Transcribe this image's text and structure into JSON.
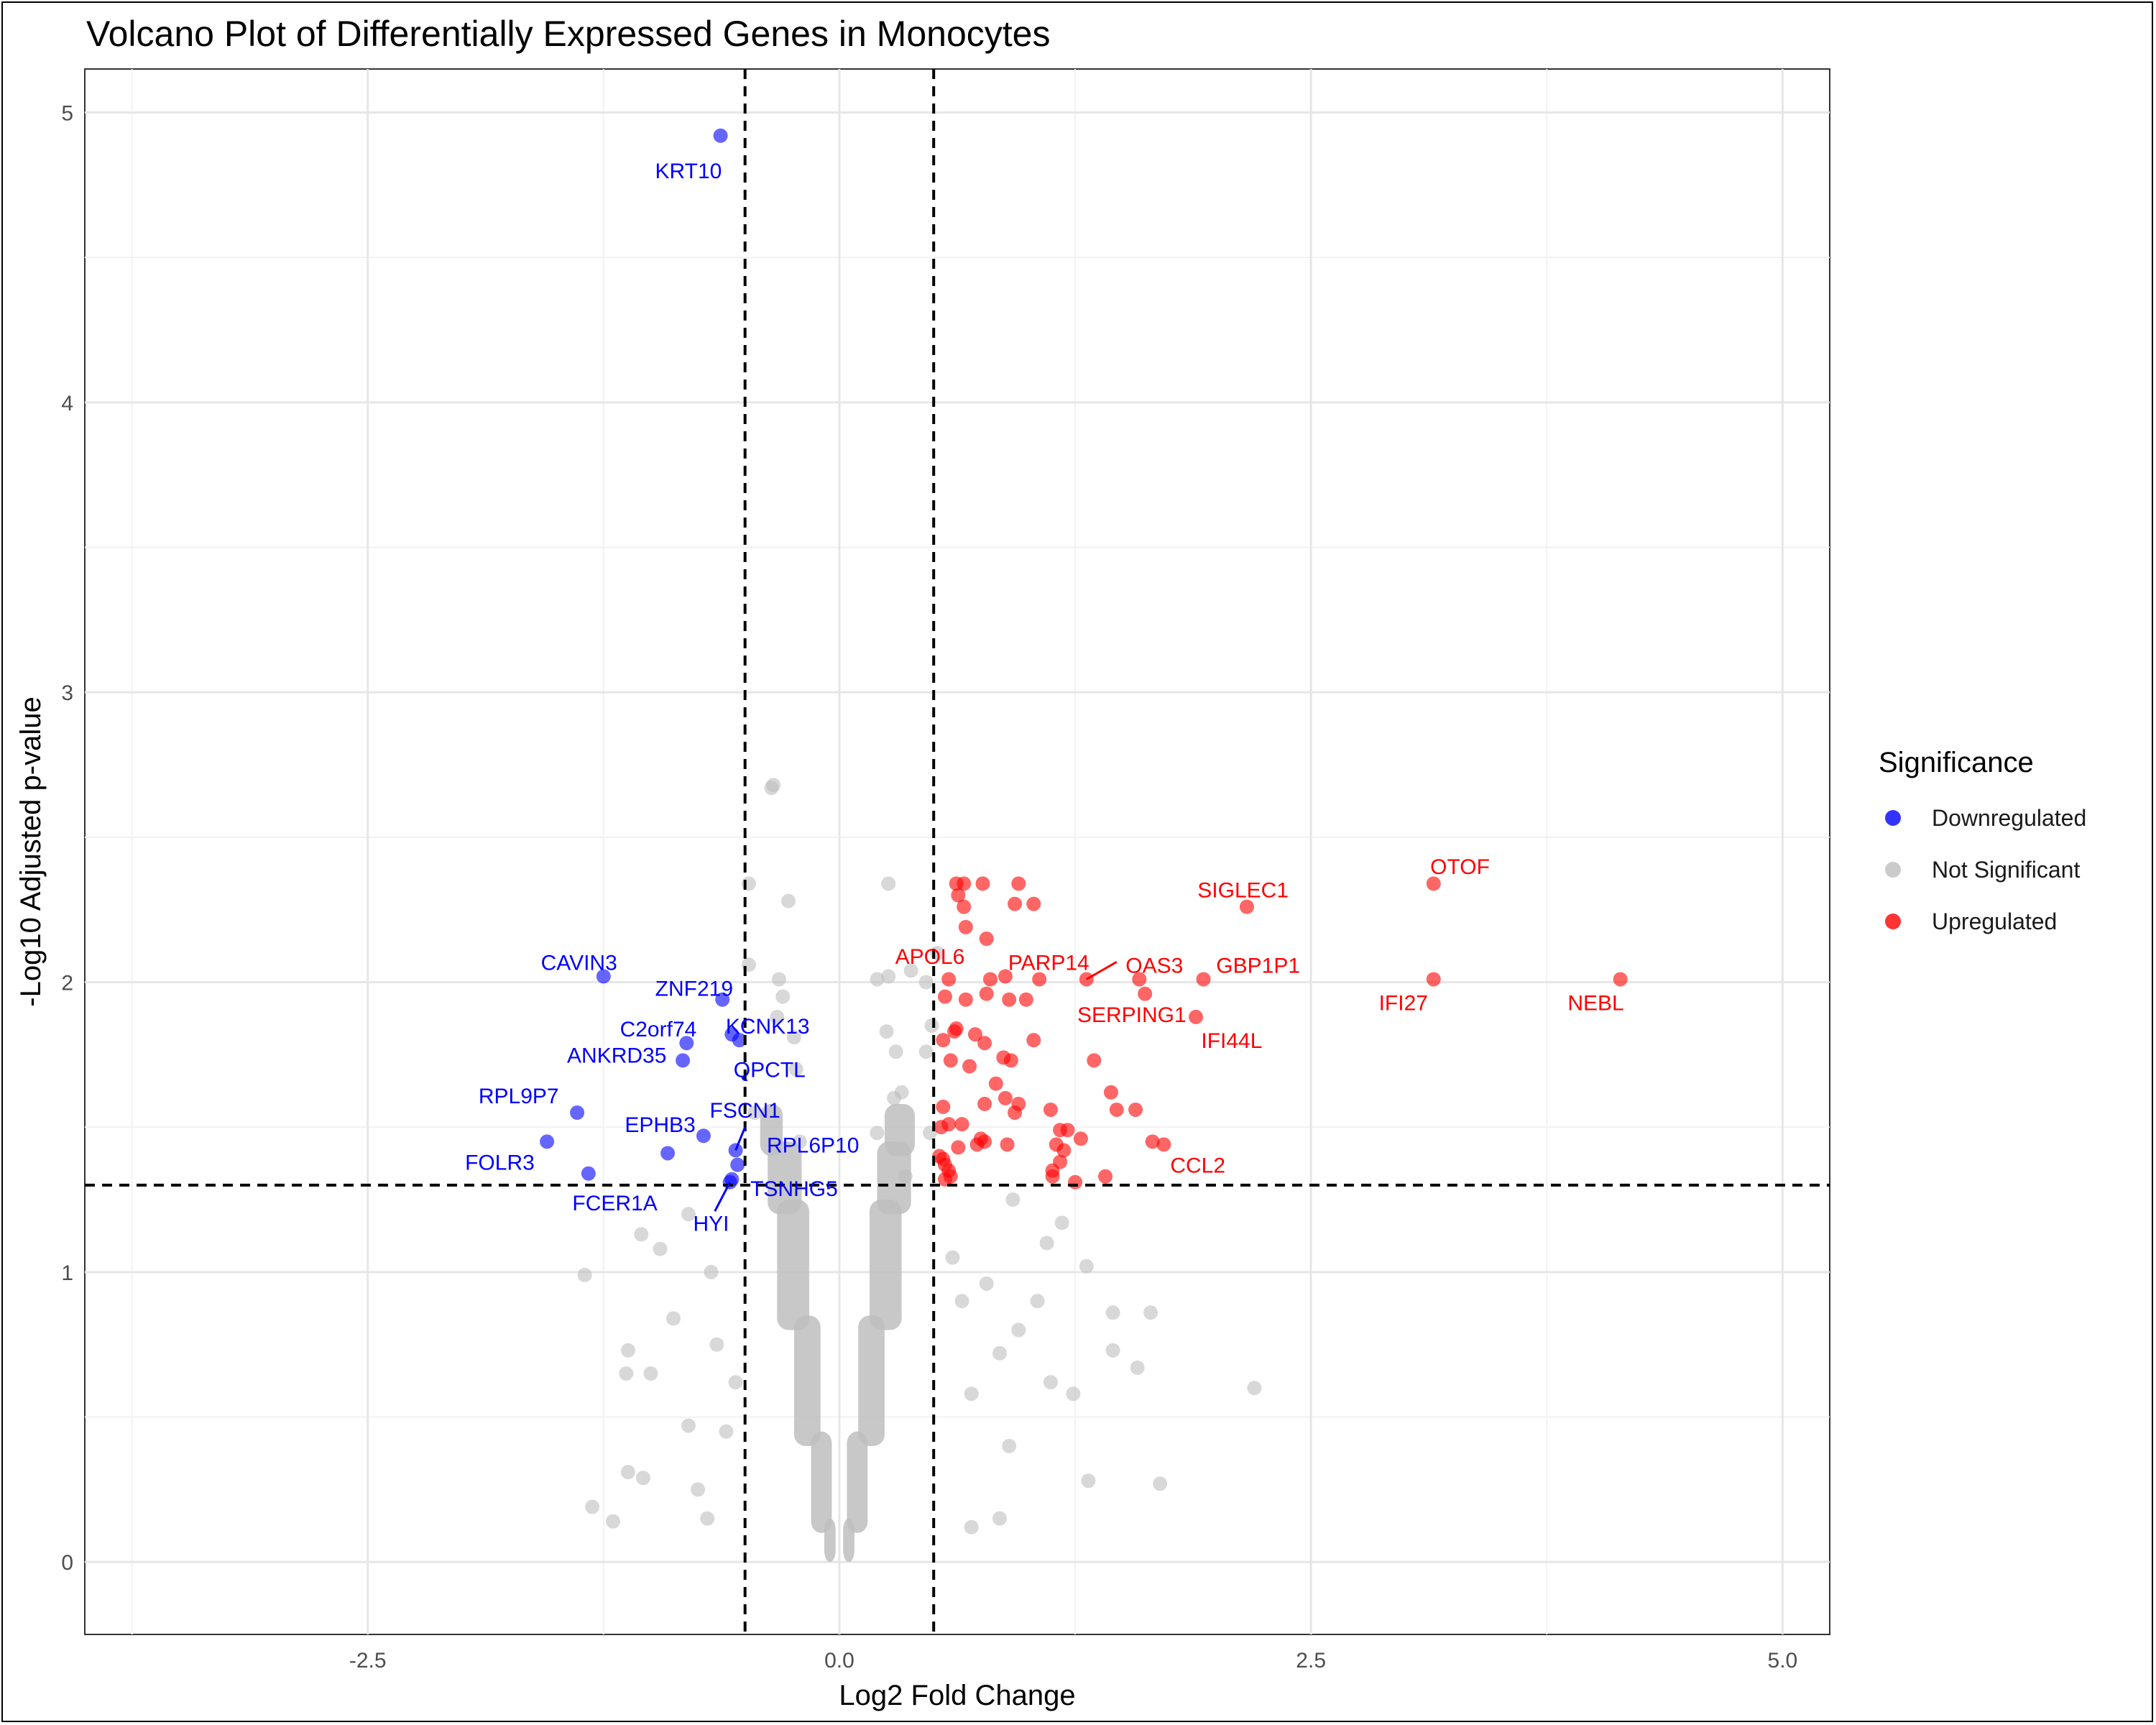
{
  "chart_data": {
    "type": "scatter",
    "title": "Volcano Plot of Differentially Expressed Genes in Monocytes",
    "xlabel": "Log2 Fold Change",
    "ylabel": "-Log10 Adjusted p-value",
    "xlim": [
      -4.0,
      5.25
    ],
    "ylim": [
      -0.25,
      5.15
    ],
    "x_ticks": [
      -2.5,
      0.0,
      2.5,
      5.0
    ],
    "x_tick_labels": [
      "-2.5",
      "0.0",
      "2.5",
      "5.0"
    ],
    "y_ticks": [
      0,
      1,
      2,
      3,
      4,
      5
    ],
    "y_tick_labels": [
      "0",
      "1",
      "2",
      "3",
      "4",
      "5"
    ],
    "grid": true,
    "thresholds": {
      "log2fc": [
        -0.5,
        0.5
      ],
      "neg_log10_padj": 1.3
    },
    "legend": {
      "title": "Significance",
      "position": "right",
      "entries": [
        {
          "label": "Downregulated",
          "color": "#0000ff"
        },
        {
          "label": "Not Significant",
          "color": "#bebebe"
        },
        {
          "label": "Upregulated",
          "color": "#ff0000"
        }
      ]
    },
    "colors": {
      "Downregulated": "#0000ff",
      "Not Significant": "#bebebe",
      "Upregulated": "#ff0000"
    },
    "series": [
      {
        "name": "Downregulated",
        "points": [
          {
            "x": -0.63,
            "y": 4.92,
            "label": "KRT10"
          },
          {
            "x": -1.25,
            "y": 2.02,
            "label": "CAVIN3"
          },
          {
            "x": -0.62,
            "y": 1.94,
            "label": "ZNF219"
          },
          {
            "x": -0.57,
            "y": 1.82
          },
          {
            "x": -0.53,
            "y": 1.8,
            "label": "KCNK13"
          },
          {
            "x": -0.81,
            "y": 1.79,
            "label": "C2orf74"
          },
          {
            "x": -0.83,
            "y": 1.73,
            "label": "ANKRD35"
          },
          {
            "x": -1.39,
            "y": 1.55,
            "label": "RPL9P7"
          },
          {
            "x": -0.72,
            "y": 1.47,
            "label": "EPHB3"
          },
          {
            "x": -1.55,
            "y": 1.45,
            "label": "FOLR3"
          },
          {
            "x": -0.55,
            "y": 1.42,
            "label": "RPL6P10"
          },
          {
            "x": -0.91,
            "y": 1.41
          },
          {
            "x": -0.54,
            "y": 1.37
          },
          {
            "x": -1.33,
            "y": 1.34,
            "label": "FCER1A"
          },
          {
            "x": -0.57,
            "y": 1.32
          },
          {
            "x": -0.58,
            "y": 1.31
          }
        ]
      },
      {
        "name": "Upregulated",
        "points": [
          {
            "x": 3.15,
            "y": 2.34,
            "label": "OTOF"
          },
          {
            "x": 2.16,
            "y": 2.26,
            "label": "SIGLEC1"
          },
          {
            "x": 3.15,
            "y": 2.01,
            "label": "IFI27"
          },
          {
            "x": 4.14,
            "y": 2.01,
            "label": "NEBL"
          },
          {
            "x": 1.93,
            "y": 2.01,
            "label": "GBP1P1"
          },
          {
            "x": 1.31,
            "y": 2.01,
            "label": "PARP14"
          },
          {
            "x": 1.59,
            "y": 2.01,
            "label": "OAS3"
          },
          {
            "x": 1.62,
            "y": 1.96
          },
          {
            "x": 1.89,
            "y": 1.88,
            "label": "IFI44L"
          },
          {
            "x": 1.72,
            "y": 1.44,
            "label": "CCL2"
          },
          {
            "x": 1.66,
            "y": 1.45
          },
          {
            "x": 1.35,
            "y": 1.73
          },
          {
            "x": 1.44,
            "y": 1.62
          },
          {
            "x": 1.47,
            "y": 1.56
          },
          {
            "x": 1.57,
            "y": 1.56
          },
          {
            "x": 0.62,
            "y": 2.34
          },
          {
            "x": 0.66,
            "y": 2.34
          },
          {
            "x": 0.76,
            "y": 2.34
          },
          {
            "x": 0.95,
            "y": 2.34
          },
          {
            "x": 0.63,
            "y": 2.3
          },
          {
            "x": 0.93,
            "y": 2.27
          },
          {
            "x": 1.03,
            "y": 2.27
          },
          {
            "x": 0.66,
            "y": 2.26
          },
          {
            "x": 0.67,
            "y": 2.19
          },
          {
            "x": 0.78,
            "y": 2.15
          },
          {
            "x": 0.58,
            "y": 2.01
          },
          {
            "x": 0.88,
            "y": 2.02
          },
          {
            "x": 1.06,
            "y": 2.01
          },
          {
            "x": 0.8,
            "y": 2.01
          },
          {
            "x": 0.56,
            "y": 1.95
          },
          {
            "x": 0.67,
            "y": 1.94
          },
          {
            "x": 0.9,
            "y": 1.94
          },
          {
            "x": 0.78,
            "y": 1.96
          },
          {
            "x": 0.99,
            "y": 1.94
          },
          {
            "x": 0.62,
            "y": 1.84
          },
          {
            "x": 0.61,
            "y": 1.83
          },
          {
            "x": 0.72,
            "y": 1.82
          },
          {
            "x": 1.03,
            "y": 1.8
          },
          {
            "x": 0.55,
            "y": 1.8
          },
          {
            "x": 0.77,
            "y": 1.79
          },
          {
            "x": 0.87,
            "y": 1.74
          },
          {
            "x": 0.91,
            "y": 1.73
          },
          {
            "x": 0.59,
            "y": 1.73
          },
          {
            "x": 0.69,
            "y": 1.71
          },
          {
            "x": 0.83,
            "y": 1.65
          },
          {
            "x": 0.88,
            "y": 1.6
          },
          {
            "x": 0.95,
            "y": 1.58
          },
          {
            "x": 0.55,
            "y": 1.57
          },
          {
            "x": 0.77,
            "y": 1.58
          },
          {
            "x": 0.93,
            "y": 1.55
          },
          {
            "x": 1.12,
            "y": 1.56
          },
          {
            "x": 0.58,
            "y": 1.51
          },
          {
            "x": 0.65,
            "y": 1.51
          },
          {
            "x": 0.54,
            "y": 1.5
          },
          {
            "x": 1.17,
            "y": 1.49
          },
          {
            "x": 1.21,
            "y": 1.49
          },
          {
            "x": 0.75,
            "y": 1.46
          },
          {
            "x": 0.89,
            "y": 1.44
          },
          {
            "x": 1.28,
            "y": 1.46
          },
          {
            "x": 0.73,
            "y": 1.44
          },
          {
            "x": 0.77,
            "y": 1.45
          },
          {
            "x": 1.15,
            "y": 1.44
          },
          {
            "x": 0.63,
            "y": 1.43
          },
          {
            "x": 1.19,
            "y": 1.42
          },
          {
            "x": 0.53,
            "y": 1.4
          },
          {
            "x": 0.55,
            "y": 1.39
          },
          {
            "x": 1.17,
            "y": 1.38
          },
          {
            "x": 1.13,
            "y": 1.35
          },
          {
            "x": 0.56,
            "y": 1.37
          },
          {
            "x": 0.58,
            "y": 1.35
          },
          {
            "x": 0.59,
            "y": 1.33
          },
          {
            "x": 1.13,
            "y": 1.33
          },
          {
            "x": 1.41,
            "y": 1.33
          },
          {
            "x": 0.56,
            "y": 1.32
          },
          {
            "x": 1.25,
            "y": 1.31
          }
        ]
      },
      {
        "name": "Not Significant",
        "points": [
          {
            "x": -0.35,
            "y": 2.68
          },
          {
            "x": -0.36,
            "y": 2.67
          },
          {
            "x": 0.26,
            "y": 2.34
          },
          {
            "x": -0.27,
            "y": 2.28
          },
          {
            "x": -0.48,
            "y": 2.34
          },
          {
            "x": 0.52,
            "y": 2.1
          },
          {
            "x": -0.48,
            "y": 2.06
          },
          {
            "x": 0.38,
            "y": 2.04
          },
          {
            "x": 0.2,
            "y": 2.01
          },
          {
            "x": 0.26,
            "y": 2.02
          },
          {
            "x": -0.32,
            "y": 2.01
          },
          {
            "x": 0.46,
            "y": 2.0
          },
          {
            "x": -0.3,
            "y": 1.95
          },
          {
            "x": -0.33,
            "y": 1.88
          },
          {
            "x": 0.49,
            "y": 1.85
          },
          {
            "x": 0.25,
            "y": 1.83
          },
          {
            "x": -0.24,
            "y": 1.81
          },
          {
            "x": 0.46,
            "y": 1.76
          },
          {
            "x": 0.3,
            "y": 1.76
          },
          {
            "x": -0.23,
            "y": 1.7
          },
          {
            "x": 0.33,
            "y": 1.62
          },
          {
            "x": -0.45,
            "y": 1.55
          },
          {
            "x": 0.29,
            "y": 1.6
          },
          {
            "x": 0.48,
            "y": 1.48
          },
          {
            "x": 0.2,
            "y": 1.48
          },
          {
            "x": -0.21,
            "y": 1.45
          },
          {
            "x": 0.35,
            "y": 1.33
          },
          {
            "x": -0.95,
            "y": 1.08
          },
          {
            "x": -1.35,
            "y": 0.99
          },
          {
            "x": -1.05,
            "y": 1.13
          },
          {
            "x": -0.8,
            "y": 1.2
          },
          {
            "x": -0.88,
            "y": 0.84
          },
          {
            "x": -1.0,
            "y": 0.65
          },
          {
            "x": -1.12,
            "y": 0.73
          },
          {
            "x": -1.13,
            "y": 0.65
          },
          {
            "x": -1.12,
            "y": 0.31
          },
          {
            "x": -1.04,
            "y": 0.29
          },
          {
            "x": -1.31,
            "y": 0.19
          },
          {
            "x": -1.2,
            "y": 0.14
          },
          {
            "x": -0.75,
            "y": 0.25
          },
          {
            "x": -0.7,
            "y": 0.15
          },
          {
            "x": -0.65,
            "y": 0.75
          },
          {
            "x": -0.8,
            "y": 0.47
          },
          {
            "x": 0.7,
            "y": 0.58
          },
          {
            "x": 0.85,
            "y": 0.72
          },
          {
            "x": 0.95,
            "y": 0.8
          },
          {
            "x": 1.05,
            "y": 0.9
          },
          {
            "x": 0.78,
            "y": 0.96
          },
          {
            "x": 1.1,
            "y": 1.1
          },
          {
            "x": 1.18,
            "y": 1.17
          },
          {
            "x": 0.92,
            "y": 1.25
          },
          {
            "x": 1.31,
            "y": 1.02
          },
          {
            "x": 1.45,
            "y": 0.86
          },
          {
            "x": 1.65,
            "y": 0.86
          },
          {
            "x": 1.45,
            "y": 0.73
          },
          {
            "x": 1.58,
            "y": 0.67
          },
          {
            "x": 1.24,
            "y": 0.58
          },
          {
            "x": 1.12,
            "y": 0.62
          },
          {
            "x": 1.32,
            "y": 0.28
          },
          {
            "x": 1.7,
            "y": 0.27
          },
          {
            "x": 2.2,
            "y": 0.6
          },
          {
            "x": 0.9,
            "y": 0.4
          },
          {
            "x": 0.85,
            "y": 0.15
          },
          {
            "x": 0.7,
            "y": 0.12
          },
          {
            "x": -0.6,
            "y": 0.45
          },
          {
            "x": -0.55,
            "y": 0.62
          },
          {
            "x": 0.65,
            "y": 0.9
          },
          {
            "x": 0.6,
            "y": 1.05
          },
          {
            "x": -0.68,
            "y": 1.0
          }
        ]
      }
    ]
  }
}
